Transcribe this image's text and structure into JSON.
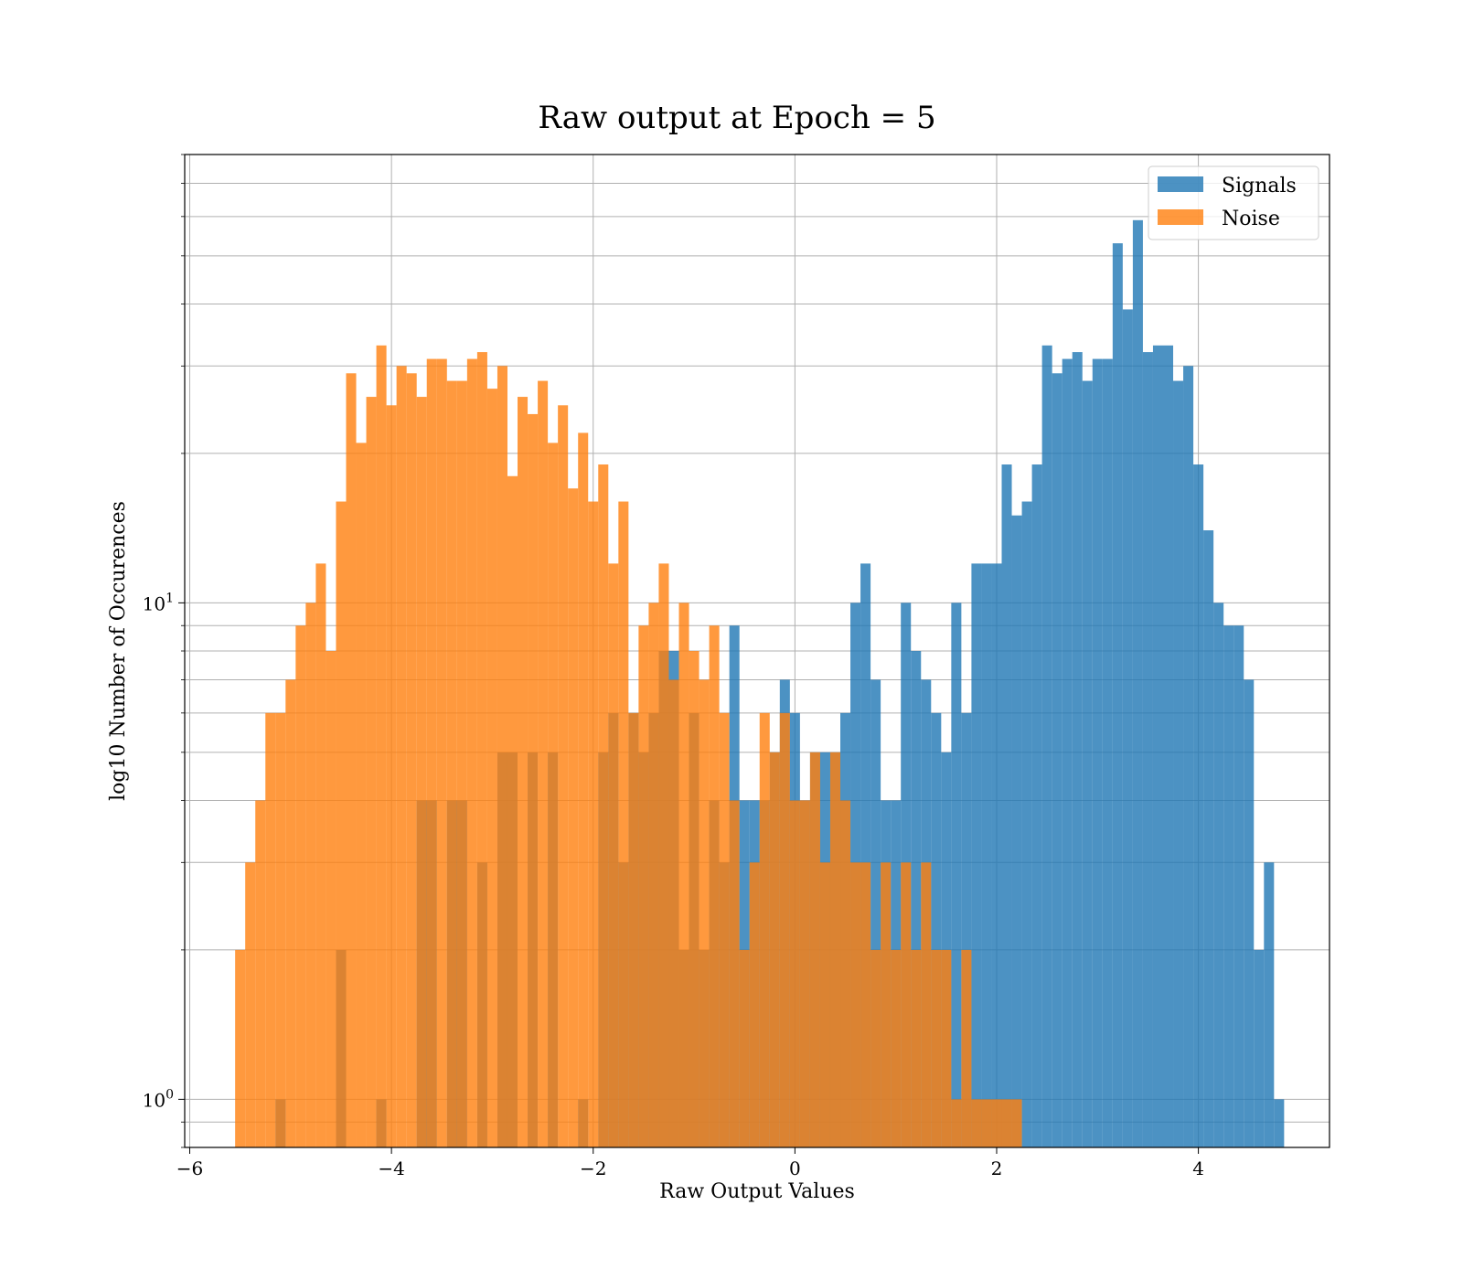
{
  "chart_data": {
    "type": "bar",
    "subtype": "overlapping-histogram",
    "title": "Raw output at Epoch = 5",
    "xlabel": "Raw Output Values",
    "ylabel": "log10 Number of Occurences",
    "xlim": [
      -6.05,
      5.3
    ],
    "ylim": [
      0.8,
      80
    ],
    "yscale": "log",
    "grid": true,
    "legend_position": "top-right",
    "x_ticks": [
      {
        "value": -6,
        "label": "−6"
      },
      {
        "value": -4,
        "label": "−4"
      },
      {
        "value": -2,
        "label": "−2"
      },
      {
        "value": 0,
        "label": "0"
      },
      {
        "value": 2,
        "label": "2"
      },
      {
        "value": 4,
        "label": "4"
      }
    ],
    "y_ticks": [
      {
        "value": 1,
        "base": "10",
        "exp": "0"
      },
      {
        "value": 10,
        "base": "10",
        "exp": "1"
      }
    ],
    "colors": {
      "signals": "#1f77b4",
      "noise": "#ff7f0e"
    },
    "series": [
      {
        "name": "Signals",
        "color": "#1f77b4",
        "bins": [
          [
            -5.15,
            -5.05,
            1
          ],
          [
            -4.55,
            -4.45,
            2
          ],
          [
            -4.15,
            -4.05,
            1
          ],
          [
            -3.75,
            -3.55,
            4
          ],
          [
            -3.45,
            -3.25,
            4
          ],
          [
            -3.15,
            -3.05,
            3
          ],
          [
            -2.95,
            -2.75,
            5
          ],
          [
            -2.65,
            -2.55,
            5
          ],
          [
            -2.45,
            -2.35,
            5
          ],
          [
            -2.15,
            -2.05,
            1
          ],
          [
            -1.95,
            -1.85,
            5
          ],
          [
            -1.85,
            -1.75,
            6
          ],
          [
            -1.75,
            -1.65,
            3
          ],
          [
            -1.65,
            -1.55,
            6
          ],
          [
            -1.55,
            -1.45,
            5
          ],
          [
            -1.45,
            -1.35,
            6
          ],
          [
            -1.35,
            -1.25,
            8
          ],
          [
            -1.25,
            -1.15,
            8
          ],
          [
            -1.15,
            -1.05,
            2
          ],
          [
            -1.05,
            -0.95,
            6
          ],
          [
            -0.95,
            -0.85,
            2
          ],
          [
            -0.85,
            -0.75,
            4
          ],
          [
            -0.75,
            -0.65,
            3
          ],
          [
            -0.65,
            -0.55,
            9
          ],
          [
            -0.55,
            -0.45,
            4
          ],
          [
            -0.45,
            -0.35,
            4
          ],
          [
            -0.35,
            -0.25,
            4
          ],
          [
            -0.25,
            -0.15,
            5
          ],
          [
            -0.15,
            -0.05,
            7
          ],
          [
            -0.05,
            0.05,
            6
          ],
          [
            0.05,
            0.15,
            4
          ],
          [
            0.15,
            0.25,
            5
          ],
          [
            0.25,
            0.35,
            5
          ],
          [
            0.35,
            0.45,
            5
          ],
          [
            0.45,
            0.55,
            6
          ],
          [
            0.55,
            0.65,
            10
          ],
          [
            0.65,
            0.75,
            12
          ],
          [
            0.75,
            0.85,
            7
          ],
          [
            0.85,
            0.95,
            4
          ],
          [
            0.95,
            1.05,
            4
          ],
          [
            1.05,
            1.15,
            10
          ],
          [
            1.15,
            1.25,
            8
          ],
          [
            1.25,
            1.35,
            7
          ],
          [
            1.35,
            1.45,
            6
          ],
          [
            1.45,
            1.55,
            5
          ],
          [
            1.55,
            1.65,
            10
          ],
          [
            1.65,
            1.75,
            6
          ],
          [
            1.75,
            1.85,
            12
          ],
          [
            1.85,
            1.95,
            12
          ],
          [
            1.95,
            2.05,
            12
          ],
          [
            2.05,
            2.15,
            19
          ],
          [
            2.15,
            2.25,
            15
          ],
          [
            2.25,
            2.35,
            16
          ],
          [
            2.35,
            2.45,
            19
          ],
          [
            2.45,
            2.55,
            33
          ],
          [
            2.55,
            2.65,
            29
          ],
          [
            2.65,
            2.75,
            31
          ],
          [
            2.75,
            2.85,
            32
          ],
          [
            2.85,
            2.95,
            28
          ],
          [
            2.95,
            3.05,
            31
          ],
          [
            3.05,
            3.15,
            31
          ],
          [
            3.15,
            3.25,
            53
          ],
          [
            3.25,
            3.35,
            39
          ],
          [
            3.35,
            3.45,
            59
          ],
          [
            3.45,
            3.55,
            32
          ],
          [
            3.55,
            3.65,
            33
          ],
          [
            3.65,
            3.75,
            33
          ],
          [
            3.75,
            3.85,
            28
          ],
          [
            3.85,
            3.95,
            30
          ],
          [
            3.95,
            4.05,
            19
          ],
          [
            4.05,
            4.15,
            14
          ],
          [
            4.15,
            4.25,
            10
          ],
          [
            4.25,
            4.35,
            9
          ],
          [
            4.35,
            4.45,
            9
          ],
          [
            4.45,
            4.55,
            7
          ],
          [
            4.55,
            4.65,
            2
          ],
          [
            4.65,
            4.75,
            3
          ],
          [
            4.75,
            4.85,
            1
          ]
        ]
      },
      {
        "name": "Noise",
        "color": "#ff7f0e",
        "bins": [
          [
            -5.55,
            -5.45,
            2
          ],
          [
            -5.45,
            -5.35,
            3
          ],
          [
            -5.35,
            -5.25,
            4
          ],
          [
            -5.25,
            -5.15,
            6
          ],
          [
            -5.15,
            -5.05,
            6
          ],
          [
            -5.05,
            -4.95,
            7
          ],
          [
            -4.95,
            -4.85,
            9
          ],
          [
            -4.85,
            -4.75,
            10
          ],
          [
            -4.75,
            -4.65,
            12
          ],
          [
            -4.65,
            -4.55,
            8
          ],
          [
            -4.55,
            -4.45,
            16
          ],
          [
            -4.45,
            -4.35,
            29
          ],
          [
            -4.35,
            -4.25,
            21
          ],
          [
            -4.25,
            -4.15,
            26
          ],
          [
            -4.15,
            -4.05,
            33
          ],
          [
            -4.05,
            -3.95,
            25
          ],
          [
            -3.95,
            -3.85,
            30
          ],
          [
            -3.85,
            -3.75,
            29
          ],
          [
            -3.75,
            -3.65,
            26
          ],
          [
            -3.65,
            -3.55,
            31
          ],
          [
            -3.55,
            -3.45,
            31
          ],
          [
            -3.45,
            -3.35,
            28
          ],
          [
            -3.35,
            -3.25,
            28
          ],
          [
            -3.25,
            -3.15,
            31
          ],
          [
            -3.15,
            -3.05,
            32
          ],
          [
            -3.05,
            -2.95,
            27
          ],
          [
            -2.95,
            -2.85,
            30
          ],
          [
            -2.85,
            -2.75,
            18
          ],
          [
            -2.75,
            -2.65,
            26
          ],
          [
            -2.65,
            -2.55,
            24
          ],
          [
            -2.55,
            -2.45,
            28
          ],
          [
            -2.45,
            -2.35,
            21
          ],
          [
            -2.35,
            -2.25,
            25
          ],
          [
            -2.25,
            -2.15,
            17
          ],
          [
            -2.15,
            -2.05,
            22
          ],
          [
            -2.05,
            -1.95,
            16
          ],
          [
            -1.95,
            -1.85,
            19
          ],
          [
            -1.85,
            -1.75,
            12
          ],
          [
            -1.75,
            -1.65,
            16
          ],
          [
            -1.65,
            -1.55,
            6
          ],
          [
            -1.55,
            -1.45,
            9
          ],
          [
            -1.45,
            -1.35,
            10
          ],
          [
            -1.35,
            -1.25,
            12
          ],
          [
            -1.25,
            -1.15,
            7
          ],
          [
            -1.15,
            -1.05,
            10
          ],
          [
            -1.05,
            -0.95,
            8
          ],
          [
            -0.95,
            -0.85,
            7
          ],
          [
            -0.85,
            -0.75,
            9
          ],
          [
            -0.75,
            -0.65,
            6
          ],
          [
            -0.65,
            -0.55,
            4
          ],
          [
            -0.55,
            -0.45,
            2
          ],
          [
            -0.45,
            -0.35,
            3
          ],
          [
            -0.35,
            -0.25,
            6
          ],
          [
            -0.25,
            -0.15,
            5
          ],
          [
            -0.15,
            -0.05,
            6
          ],
          [
            -0.05,
            0.05,
            4
          ],
          [
            0.05,
            0.15,
            4
          ],
          [
            0.15,
            0.25,
            5
          ],
          [
            0.25,
            0.35,
            3
          ],
          [
            0.35,
            0.45,
            5
          ],
          [
            0.45,
            0.55,
            4
          ],
          [
            0.55,
            0.65,
            3
          ],
          [
            0.65,
            0.75,
            3
          ],
          [
            0.75,
            0.85,
            2
          ],
          [
            0.85,
            0.95,
            3
          ],
          [
            0.95,
            1.05,
            2
          ],
          [
            1.05,
            1.15,
            3
          ],
          [
            1.15,
            1.25,
            2
          ],
          [
            1.25,
            1.35,
            3
          ],
          [
            1.35,
            1.45,
            2
          ],
          [
            1.45,
            1.55,
            2
          ],
          [
            1.55,
            1.65,
            1
          ],
          [
            1.65,
            1.75,
            2
          ],
          [
            1.75,
            1.85,
            1
          ],
          [
            1.85,
            1.95,
            1
          ],
          [
            1.95,
            2.05,
            1
          ],
          [
            2.05,
            2.15,
            1
          ],
          [
            2.15,
            2.25,
            1
          ]
        ]
      }
    ]
  }
}
